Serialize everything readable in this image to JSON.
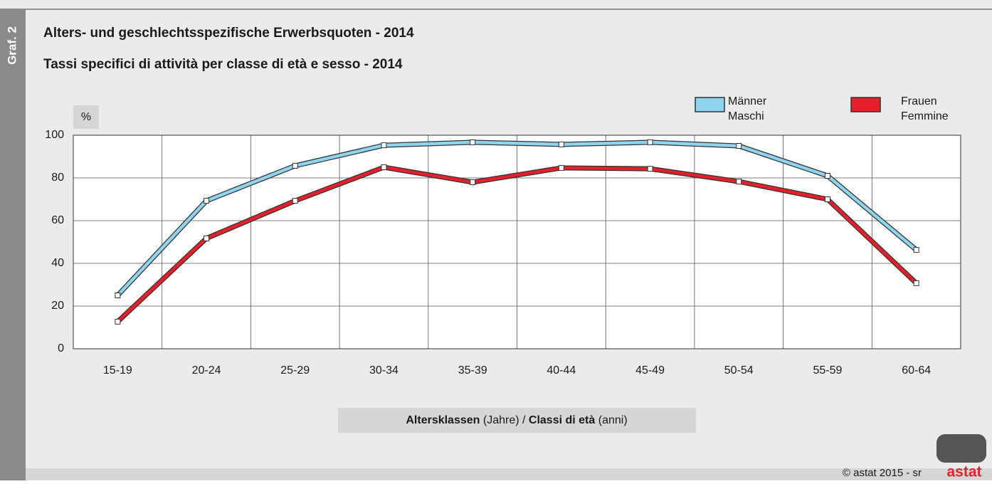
{
  "graph_label": "Graf. 2",
  "footer": {
    "credit": "© astat 2015 - sr",
    "logo": "astat"
  },
  "chart_data": {
    "type": "line",
    "title": "Alters- und geschlechtsspezifische Erwerbsquoten - 2014",
    "subtitle": "Tassi specifici di attività per classe di età e sesso - 2014",
    "y_unit": "%",
    "x_label": {
      "de_bold": "Altersklassen",
      "de": "(Jahre) /",
      "it_bold": "Classi di età",
      "it": "(anni)"
    },
    "categories": [
      "15-19",
      "20-24",
      "25-29",
      "30-34",
      "35-39",
      "40-44",
      "45-49",
      "50-54",
      "55-59",
      "60-64"
    ],
    "series": [
      {
        "name": [
          "Männer",
          "Maschi"
        ],
        "color": "#8fd3ee",
        "values": [
          25,
          69.3,
          85.7,
          95.3,
          96.7,
          95.7,
          96.7,
          95,
          81,
          46.3
        ]
      },
      {
        "name": [
          "Frauen",
          "Femmine"
        ],
        "color": "#e5202a",
        "values": [
          12.7,
          51.7,
          69.3,
          85,
          78,
          84.7,
          84.3,
          78.3,
          70,
          30.7
        ]
      }
    ],
    "ylim": [
      0,
      100
    ],
    "yticks": [
      0,
      20,
      40,
      60,
      80,
      100
    ],
    "grid": true
  }
}
